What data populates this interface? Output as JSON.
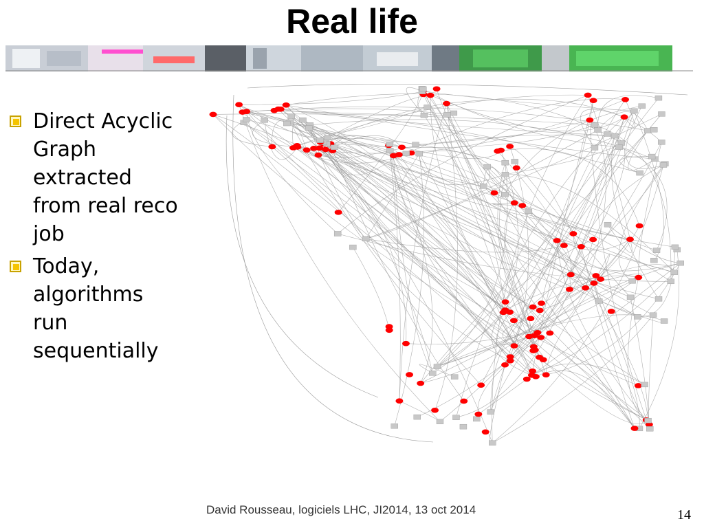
{
  "slide": {
    "title": "Real life",
    "bullets": [
      "Direct Acyclic Graph extracted from real reco job",
      "Today, algorithms run sequentially"
    ],
    "footer": "David Rousseau, logiciels LHC, JI2014, 13 oct 2014",
    "page_number": "14"
  },
  "colors": {
    "algorithm_node": "#ff0000",
    "data_node": "#c8c8c8",
    "edge": "#9a9a9a",
    "bullet_box": "#f5c400"
  },
  "icons": {
    "bullet": "checkbox-square-icon",
    "banner": "detector-photo-strip"
  }
}
